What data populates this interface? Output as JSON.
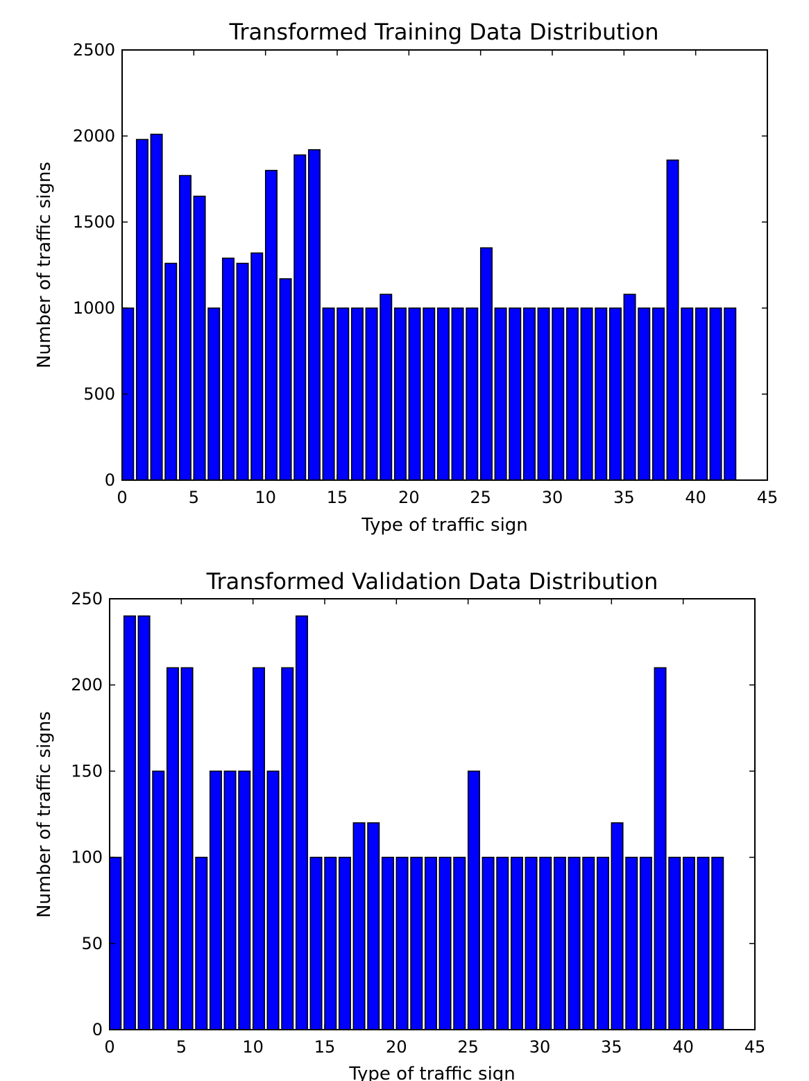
{
  "chart_data": [
    {
      "type": "bar",
      "title": "Transformed Training Data Distribution",
      "xlabel": "Type of traffic sign",
      "ylabel": "Number of traffic signs",
      "xlim": [
        0,
        45
      ],
      "ylim": [
        0,
        2500
      ],
      "xticks": [
        0,
        5,
        10,
        15,
        20,
        25,
        30,
        35,
        40,
        45
      ],
      "yticks": [
        0,
        500,
        1000,
        1500,
        2000,
        2500
      ],
      "grid": false,
      "bar_color": "#0000ff",
      "x": [
        0,
        1,
        2,
        3,
        4,
        5,
        6,
        7,
        8,
        9,
        10,
        11,
        12,
        13,
        14,
        15,
        16,
        17,
        18,
        19,
        20,
        21,
        22,
        23,
        24,
        25,
        26,
        27,
        28,
        29,
        30,
        31,
        32,
        33,
        34,
        35,
        36,
        37,
        38,
        39,
        40,
        41,
        42
      ],
      "values": [
        1000,
        1980,
        2010,
        1260,
        1770,
        1650,
        1000,
        1290,
        1260,
        1320,
        1800,
        1170,
        1890,
        1920,
        1000,
        1000,
        1000,
        1000,
        1080,
        1000,
        1000,
        1000,
        1000,
        1000,
        1000,
        1350,
        1000,
        1000,
        1000,
        1000,
        1000,
        1000,
        1000,
        1000,
        1000,
        1080,
        1000,
        1000,
        1860,
        1000,
        1000,
        1000,
        1000
      ]
    },
    {
      "type": "bar",
      "title": "Transformed Validation Data Distribution",
      "xlabel": "Type of traffic sign",
      "ylabel": "Number of traffic signs",
      "xlim": [
        0,
        45
      ],
      "ylim": [
        0,
        250
      ],
      "xticks": [
        0,
        5,
        10,
        15,
        20,
        25,
        30,
        35,
        40,
        45
      ],
      "yticks": [
        0,
        50,
        100,
        150,
        200,
        250
      ],
      "grid": false,
      "bar_color": "#0000ff",
      "x": [
        0,
        1,
        2,
        3,
        4,
        5,
        6,
        7,
        8,
        9,
        10,
        11,
        12,
        13,
        14,
        15,
        16,
        17,
        18,
        19,
        20,
        21,
        22,
        23,
        24,
        25,
        26,
        27,
        28,
        29,
        30,
        31,
        32,
        33,
        34,
        35,
        36,
        37,
        38,
        39,
        40,
        41,
        42
      ],
      "values": [
        100,
        240,
        240,
        150,
        210,
        210,
        100,
        150,
        150,
        150,
        210,
        150,
        210,
        240,
        100,
        100,
        100,
        120,
        120,
        100,
        100,
        100,
        100,
        100,
        100,
        150,
        100,
        100,
        100,
        100,
        100,
        100,
        100,
        100,
        100,
        120,
        100,
        100,
        210,
        100,
        100,
        100,
        100
      ]
    }
  ]
}
